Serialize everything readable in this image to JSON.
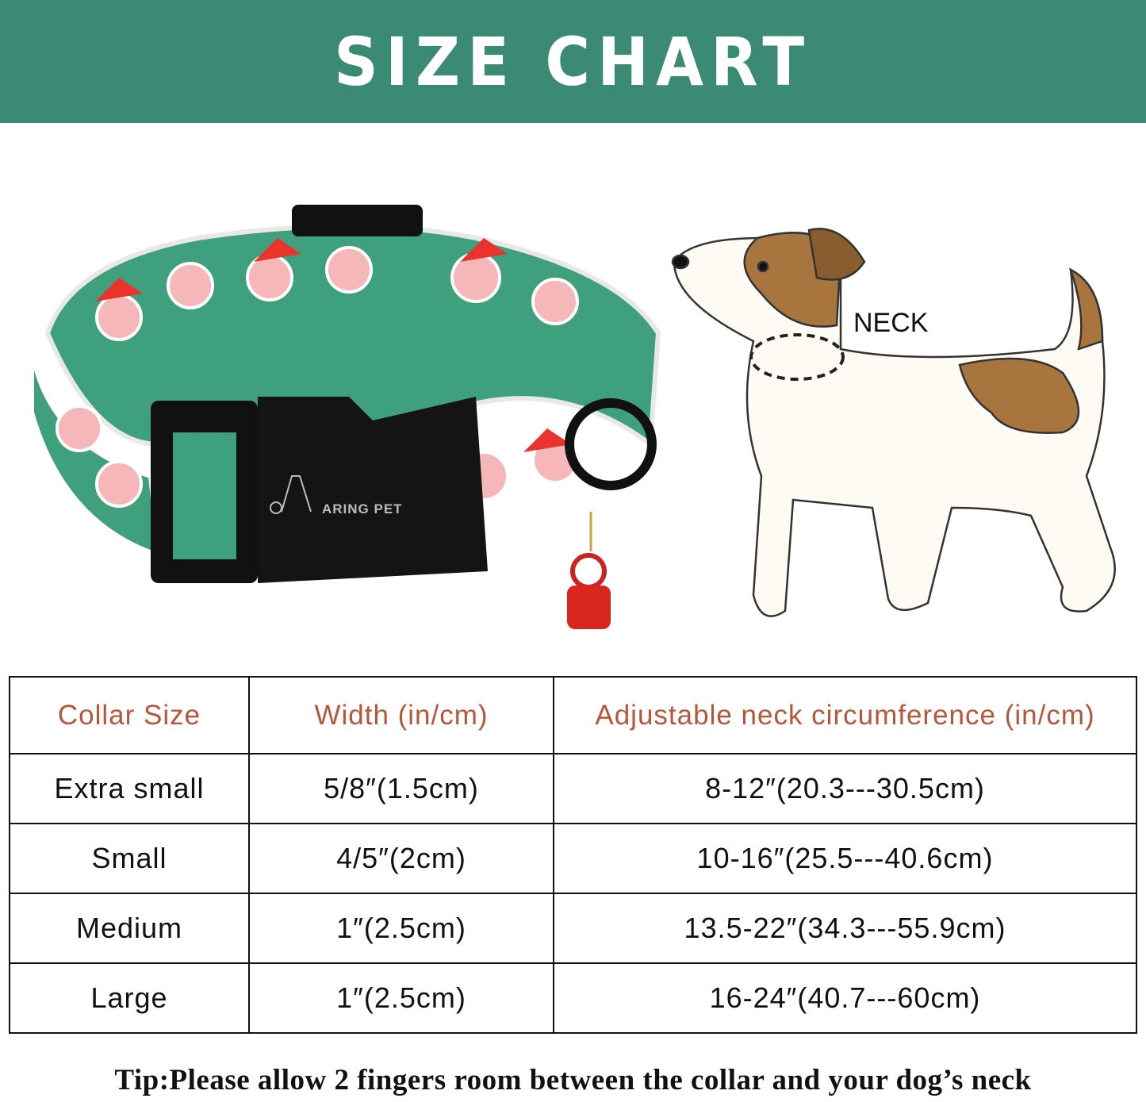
{
  "title": "SIZE CHART",
  "colors": {
    "header_bg": "#3b8a73",
    "table_header_text": "#b5573a"
  },
  "illustration": {
    "neck_label": "NECK",
    "buckle_logo": "ARING PET"
  },
  "table": {
    "headers": [
      "Collar Size",
      "Width (in/cm)",
      "Adjustable neck circumference (in/cm)"
    ],
    "rows": [
      [
        "Extra small",
        "5/8″(1.5cm)",
        "8-12″(20.3---30.5cm)"
      ],
      [
        "Small",
        "4/5″(2cm)",
        "10-16″(25.5---40.6cm)"
      ],
      [
        "Medium",
        "1″(2.5cm)",
        "13.5-22″(34.3---55.9cm)"
      ],
      [
        "Large",
        "1″(2.5cm)",
        "16-24″(40.7---60cm)"
      ]
    ]
  },
  "tip": "Tip:Please allow 2 fingers room between the collar and your dog’s neck"
}
